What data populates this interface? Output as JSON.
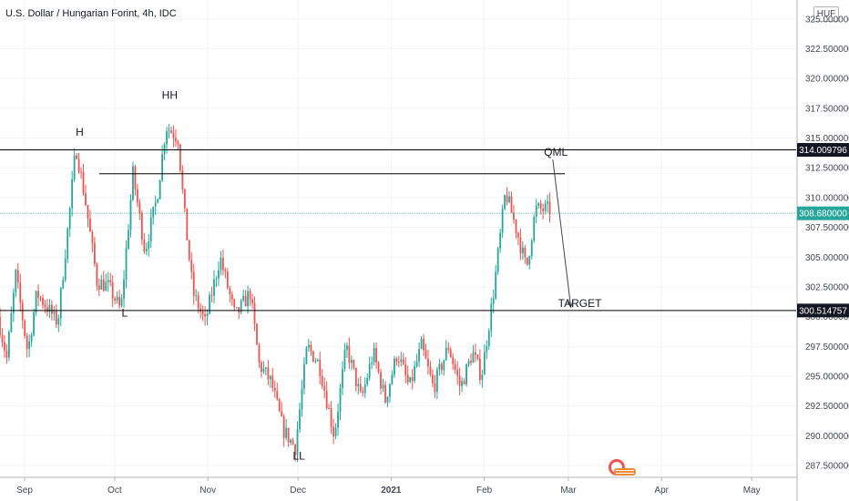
{
  "header": {
    "title": "U.S. Dollar / Hungarian Forint, 4h, IDC",
    "currency_badge": "HUF"
  },
  "colors": {
    "up": "#26a69a",
    "down": "#ef5350",
    "grid": "#f0f3fa",
    "axis_text": "#434651",
    "last_price_line": "#26a69a",
    "level_label_bg": "#131722",
    "last_price_bg": "#26a69a"
  },
  "chart_data": {
    "type": "candlestick",
    "xlabels": [
      "Sep",
      "Oct",
      "Nov",
      "Dec",
      "2021",
      "Feb",
      "Mar",
      "Apr",
      "May"
    ],
    "yticks": [
      "325.000000",
      "322.500000",
      "320.000000",
      "317.500000",
      "315.000000",
      "312.500000",
      "310.000000",
      "307.500000",
      "305.000000",
      "302.500000",
      "300.000000",
      "297.500000",
      "295.000000",
      "292.500000",
      "290.000000",
      "287.500000"
    ],
    "ylim": [
      286.5,
      326.6
    ],
    "xrange_days": [
      0,
      265
    ],
    "key_points": [
      [
        0,
        300.0
      ],
      [
        3,
        296.5
      ],
      [
        6,
        303.5
      ],
      [
        10,
        297.0
      ],
      [
        13,
        302.0
      ],
      [
        20,
        299.5
      ],
      [
        24,
        309.0
      ],
      [
        26,
        314.3
      ],
      [
        29,
        310.0
      ],
      [
        33,
        303.0
      ],
      [
        37,
        302.5
      ],
      [
        41,
        300.5
      ],
      [
        45,
        312.0
      ],
      [
        49,
        305.5
      ],
      [
        53,
        310.0
      ],
      [
        56,
        316.0
      ],
      [
        60,
        315.0
      ],
      [
        62,
        309.0
      ],
      [
        65,
        302.0
      ],
      [
        69,
        299.5
      ],
      [
        74,
        305.0
      ],
      [
        79,
        300.0
      ],
      [
        84,
        302.0
      ],
      [
        87,
        296.0
      ],
      [
        91,
        294.5
      ],
      [
        95,
        290.5
      ],
      [
        99,
        289.0
      ],
      [
        103,
        297.5
      ],
      [
        107,
        296.0
      ],
      [
        112,
        290.0
      ],
      [
        116,
        297.5
      ],
      [
        121,
        293.0
      ],
      [
        125,
        297.0
      ],
      [
        129,
        293.0
      ],
      [
        133,
        297.0
      ],
      [
        137,
        294.0
      ],
      [
        141,
        297.5
      ],
      [
        145,
        294.0
      ],
      [
        150,
        297.5
      ],
      [
        154,
        294.0
      ],
      [
        158,
        297.0
      ],
      [
        161,
        295.0
      ],
      [
        165,
        302.0
      ],
      [
        169,
        310.5
      ],
      [
        173,
        307.0
      ],
      [
        176,
        304.0
      ],
      [
        179,
        309.0
      ],
      [
        183,
        309.0
      ]
    ],
    "levels": [
      {
        "name": "QML",
        "price": 314.009796,
        "label": "314.009796"
      },
      {
        "name": "TARGET",
        "price": 300.514757,
        "label": "300.514757"
      }
    ],
    "last_price": {
      "price": 308.68,
      "label": "308.680000"
    },
    "annotations": [
      {
        "text": "H",
        "day": 26.5,
        "price": 315.2
      },
      {
        "text": "HH",
        "day": 56.5,
        "price": 318.3
      },
      {
        "text": "L",
        "day": 41.5,
        "price": 300.0
      },
      {
        "text": "LL",
        "day": 99.5,
        "price": 288.0
      },
      {
        "text": "QML",
        "day": 185.0,
        "price": 313.5
      },
      {
        "text": "TARGET",
        "day": 193.0,
        "price": 300.8
      }
    ],
    "upper_range_line": {
      "price": 312.0,
      "from_day": 33,
      "to_day": 188
    },
    "arrow": {
      "from": [
        184,
        313.2
      ],
      "to": [
        190,
        300.8
      ]
    }
  }
}
